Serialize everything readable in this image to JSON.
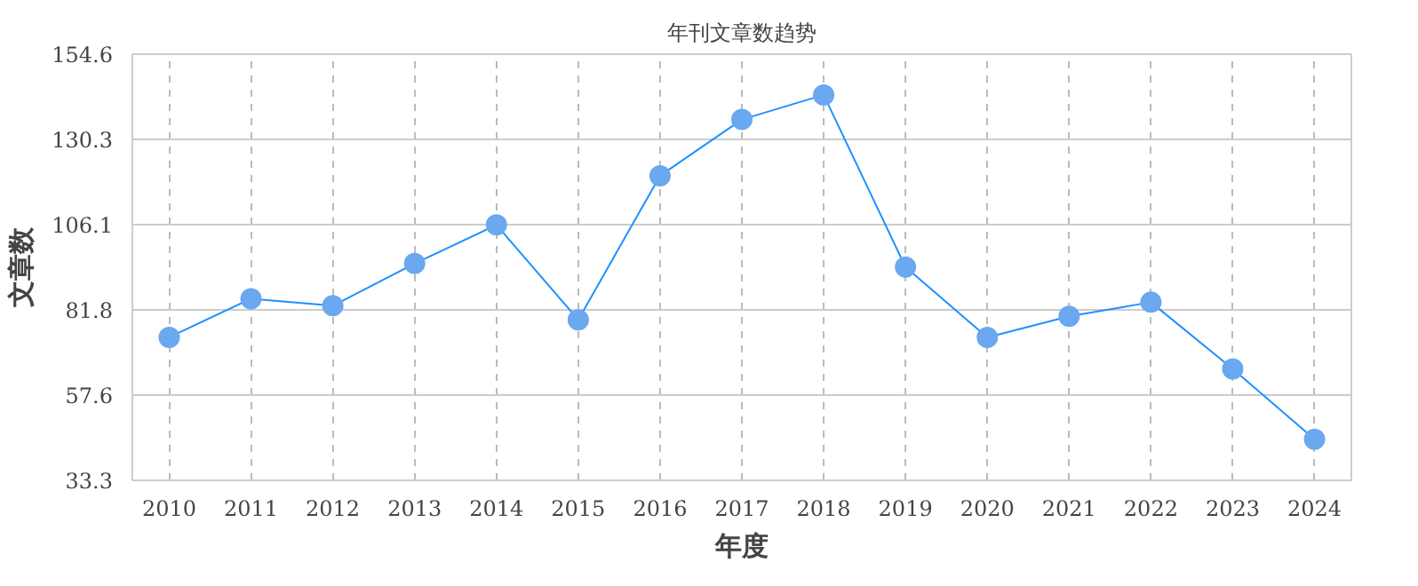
{
  "chart_data": {
    "type": "line",
    "title": "年刊文章数趋势",
    "xlabel": "年度",
    "ylabel": "文章数",
    "categories": [
      "2010",
      "2011",
      "2012",
      "2013",
      "2014",
      "2015",
      "2016",
      "2017",
      "2018",
      "2019",
      "2020",
      "2021",
      "2022",
      "2023",
      "2024"
    ],
    "series": [
      {
        "color": "#1e90ff",
        "values": [
          74,
          85,
          83,
          95,
          106,
          79,
          120,
          136,
          143,
          94,
          74,
          80,
          84,
          65,
          45
        ]
      }
    ],
    "ylim": [
      33.3,
      154.6
    ],
    "yticks": [
      33.3,
      57.6,
      81.8,
      106.1,
      130.3,
      154.6
    ],
    "grid": true,
    "marker": "circle",
    "line_style": "solid"
  }
}
